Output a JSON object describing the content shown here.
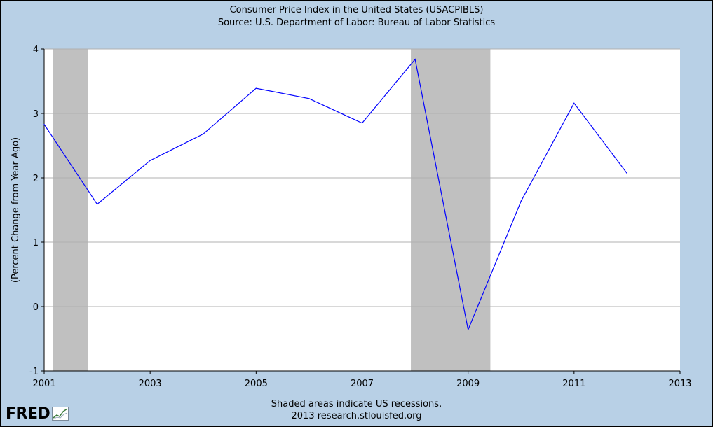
{
  "chart_data": {
    "type": "line",
    "title": "Consumer Price Index in the United States (USACPIBLS)",
    "subtitle": "Source: U.S. Department of Labor: Bureau of Labor Statistics",
    "xlabel": "",
    "ylabel": "(Percent Change from Year Ago)",
    "xlim": [
      2001,
      2013
    ],
    "ylim": [
      -1,
      4
    ],
    "x_ticks": [
      "2001",
      "2003",
      "2005",
      "2007",
      "2009",
      "2011",
      "2013"
    ],
    "y_ticks": [
      "-1",
      "0",
      "1",
      "2",
      "3",
      "4"
    ],
    "grid": true,
    "series": [
      {
        "name": "",
        "color": "#0000ff",
        "x": [
          2001,
          2002,
          2003,
          2004,
          2005,
          2006,
          2007,
          2008,
          2009,
          2010,
          2011,
          2012
        ],
        "values": [
          2.83,
          1.59,
          2.27,
          2.68,
          3.39,
          3.23,
          2.85,
          3.84,
          -0.36,
          1.64,
          3.16,
          2.07
        ]
      }
    ],
    "recessions": [
      {
        "start": 2001.17,
        "end": 2001.83
      },
      {
        "start": 2007.92,
        "end": 2009.42
      }
    ],
    "recession_color": "#c0c0c0"
  },
  "footer": {
    "note": "Shaded areas indicate US recessions.",
    "credit": "2013 research.stlouisfed.org"
  },
  "logo": {
    "text": "FRED"
  }
}
